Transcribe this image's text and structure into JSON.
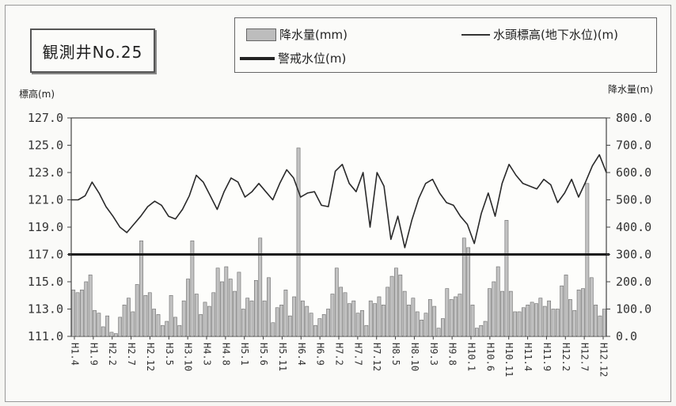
{
  "well_label": "観測井No.25",
  "legend": {
    "rainfall": "降水量(mm)",
    "groundwater": "水頭標高(地下水位)(m)",
    "warning": "警戒水位(m)"
  },
  "chart_data": {
    "type": "bar+line",
    "ylabel_left": "標高(m)",
    "ylabel_right": "降水量(m)",
    "ylim_left": [
      111.0,
      127.0
    ],
    "ylim_right": [
      0,
      800
    ],
    "left_ticks": [
      "127.0",
      "125.0",
      "123.0",
      "121.0",
      "119.0",
      "117.0",
      "115.0",
      "113.0",
      "111.0"
    ],
    "right_ticks": [
      "800.0",
      "700.0",
      "600.0",
      "500.0",
      "400.0",
      "300.0",
      "200.0",
      "100.0",
      "0.0"
    ],
    "x_ticks": [
      "H1.4",
      "H1.9",
      "H2.2",
      "H2.7",
      "H2.12",
      "H3.5",
      "H3.10",
      "H4.3",
      "H4.8",
      "H5.1",
      "H5.6",
      "H5.11",
      "H6.4",
      "H6.9",
      "H7.2",
      "H7.7",
      "H7.12",
      "H8.5",
      "H8.10",
      "H9.3",
      "H9.8",
      "H10.1",
      "H10.6",
      "H10.11",
      "H11.4",
      "H11.9",
      "H12.2",
      "H12.7",
      "H12.12"
    ],
    "warning_level": 117.0,
    "groundwater_series": [
      121.0,
      121.0,
      121.3,
      122.3,
      121.5,
      120.5,
      119.8,
      119.0,
      118.6,
      119.2,
      119.8,
      120.5,
      120.9,
      120.6,
      119.8,
      119.6,
      120.3,
      121.3,
      122.8,
      122.3,
      121.3,
      120.3,
      121.6,
      122.6,
      122.3,
      121.2,
      121.6,
      122.2,
      121.6,
      121.0,
      122.2,
      123.2,
      122.6,
      121.2,
      121.5,
      121.6,
      120.6,
      120.5,
      123.1,
      123.6,
      122.2,
      121.6,
      123.0,
      119.0,
      123.0,
      122.0,
      118.1,
      119.8,
      117.5,
      119.5,
      121.1,
      122.2,
      122.5,
      121.5,
      120.8,
      120.6,
      119.8,
      119.2,
      117.8,
      120.0,
      121.5,
      119.8,
      122.2,
      123.6,
      122.8,
      122.2,
      122.0,
      121.8,
      122.5,
      122.1,
      120.8,
      121.5,
      122.5,
      121.2,
      122.3,
      123.5,
      124.3,
      123.0
    ],
    "rainfall_series": [
      170,
      160,
      170,
      200,
      225,
      95,
      85,
      35,
      75,
      15,
      10,
      70,
      115,
      140,
      90,
      190,
      350,
      150,
      160,
      100,
      80,
      40,
      55,
      150,
      70,
      40,
      130,
      210,
      350,
      155,
      80,
      125,
      110,
      160,
      250,
      200,
      255,
      210,
      165,
      235,
      100,
      140,
      130,
      205,
      360,
      130,
      215,
      50,
      105,
      115,
      170,
      75,
      145,
      690,
      130,
      110,
      85,
      40,
      65,
      80,
      100,
      155,
      250,
      180,
      160,
      120,
      130,
      85,
      95,
      40,
      130,
      120,
      145,
      115,
      180,
      220,
      250,
      225,
      165,
      115,
      140,
      90,
      60,
      85,
      135,
      110,
      30,
      65,
      175,
      135,
      145,
      155,
      360,
      325,
      115,
      30,
      40,
      55,
      175,
      200,
      255,
      165,
      425,
      165,
      90,
      90,
      105,
      115,
      125,
      120,
      140,
      110,
      130,
      100,
      100,
      185,
      225,
      135,
      95,
      170,
      175,
      560,
      215,
      115,
      75,
      100
    ]
  }
}
